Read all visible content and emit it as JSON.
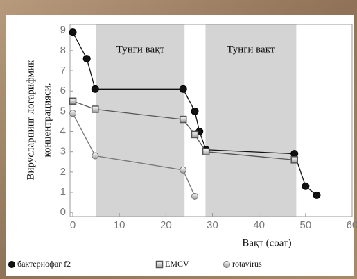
{
  "chart_data": {
    "type": "line",
    "ylabel": [
      "Вируслaрнинг логарифмик",
      "концентрацияси."
    ],
    "xlabel": "Вақт (соат)",
    "xlim": [
      -0.6,
      60
    ],
    "xticks": [
      0,
      10,
      20,
      30,
      40,
      50,
      60
    ],
    "ylim": [
      -0.2,
      9.3
    ],
    "yticks": [
      0,
      1,
      2,
      3,
      4,
      5,
      6,
      7,
      8,
      9
    ],
    "shaded": [
      {
        "x": [
          5,
          24
        ],
        "label": "Тунги вақт"
      },
      {
        "x": [
          28.5,
          48
        ],
        "label": "Тунги вақт"
      }
    ],
    "series": [
      {
        "name": "бактериофаг f2",
        "color": "#111111",
        "marker": "filled",
        "x": [
          0,
          3,
          4.8,
          23.7,
          26.2,
          27.2,
          28.6,
          47.6,
          50,
          52.4
        ],
        "values": [
          8.9,
          7.6,
          6.1,
          6.1,
          5.0,
          4.0,
          3.1,
          2.9,
          1.3,
          0.85
        ]
      },
      {
        "name": "EMCV",
        "color": "#555555",
        "marker": "square",
        "x": [
          0,
          4.8,
          23.7,
          26.2,
          28.6,
          47.6
        ],
        "values": [
          5.5,
          5.1,
          4.6,
          3.85,
          3.0,
          2.6
        ]
      },
      {
        "name": "rotavirus",
        "color": "#777777",
        "marker": "half",
        "x": [
          0,
          4.8,
          23.7,
          26.2
        ],
        "values": [
          4.9,
          2.8,
          2.1,
          0.8
        ]
      }
    ]
  }
}
